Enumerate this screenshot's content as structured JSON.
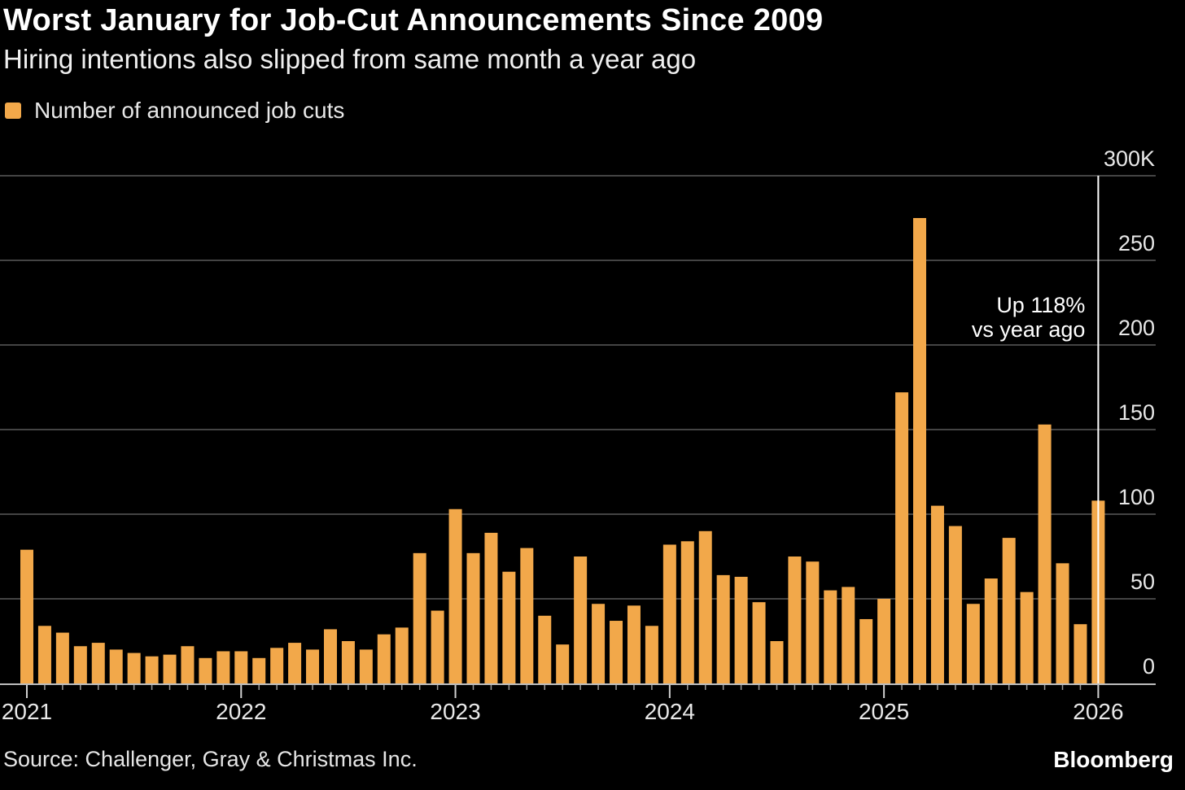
{
  "colors": {
    "background": "#000000",
    "bar": "#F2A84A",
    "grid": "#444444",
    "text": "#ffffff",
    "marker": "#ffffff"
  },
  "header": {
    "title": "Worst January for Job-Cut Announcements Since 2009",
    "subtitle": "Hiring intentions also slipped from same month a year ago"
  },
  "footer": {
    "source": "Source: Challenger, Gray & Christmas Inc.",
    "brand": "Bloomberg"
  },
  "chart_data": {
    "type": "bar",
    "legend": "Number of announced job cuts",
    "legend_position": "top-left",
    "grid": true,
    "ylim": [
      0,
      300
    ],
    "y_ticks": [
      {
        "value": 300,
        "label": "300K"
      },
      {
        "value": 250,
        "label": "250"
      },
      {
        "value": 200,
        "label": "200"
      },
      {
        "value": 150,
        "label": "150"
      },
      {
        "value": 100,
        "label": "100"
      },
      {
        "value": 50,
        "label": "50"
      },
      {
        "value": 0,
        "label": "0"
      }
    ],
    "x_ticks": [
      {
        "index": 0,
        "label": "2021"
      },
      {
        "index": 12,
        "label": "2022"
      },
      {
        "index": 24,
        "label": "2023"
      },
      {
        "index": 36,
        "label": "2024"
      },
      {
        "index": 48,
        "label": "2025"
      },
      {
        "index": 60,
        "label": "2026"
      }
    ],
    "categories": [
      "2021-01",
      "2021-02",
      "2021-03",
      "2021-04",
      "2021-05",
      "2021-06",
      "2021-07",
      "2021-08",
      "2021-09",
      "2021-10",
      "2021-11",
      "2021-12",
      "2022-01",
      "2022-02",
      "2022-03",
      "2022-04",
      "2022-05",
      "2022-06",
      "2022-07",
      "2022-08",
      "2022-09",
      "2022-10",
      "2022-11",
      "2022-12",
      "2023-01",
      "2023-02",
      "2023-03",
      "2023-04",
      "2023-05",
      "2023-06",
      "2023-07",
      "2023-08",
      "2023-09",
      "2023-10",
      "2023-11",
      "2023-12",
      "2024-01",
      "2024-02",
      "2024-03",
      "2024-04",
      "2024-05",
      "2024-06",
      "2024-07",
      "2024-08",
      "2024-09",
      "2024-10",
      "2024-11",
      "2024-12",
      "2025-01",
      "2025-02",
      "2025-03",
      "2025-04",
      "2025-05",
      "2025-06",
      "2025-07",
      "2025-08",
      "2025-09",
      "2025-10",
      "2025-11",
      "2025-12",
      "2026-01"
    ],
    "values": [
      79,
      34,
      30,
      22,
      24,
      20,
      18,
      16,
      17,
      22,
      15,
      19,
      19,
      15,
      21,
      24,
      20,
      32,
      25,
      20,
      29,
      33,
      77,
      43,
      103,
      77,
      89,
      66,
      80,
      40,
      23,
      75,
      47,
      37,
      46,
      34,
      82,
      84,
      90,
      64,
      63,
      48,
      25,
      75,
      72,
      55,
      57,
      38,
      50,
      172,
      275,
      105,
      93,
      47,
      62,
      86,
      54,
      153,
      71,
      35,
      108
    ],
    "annotation": {
      "index": 60,
      "lines": [
        "Up 118%",
        "vs year ago"
      ]
    }
  }
}
